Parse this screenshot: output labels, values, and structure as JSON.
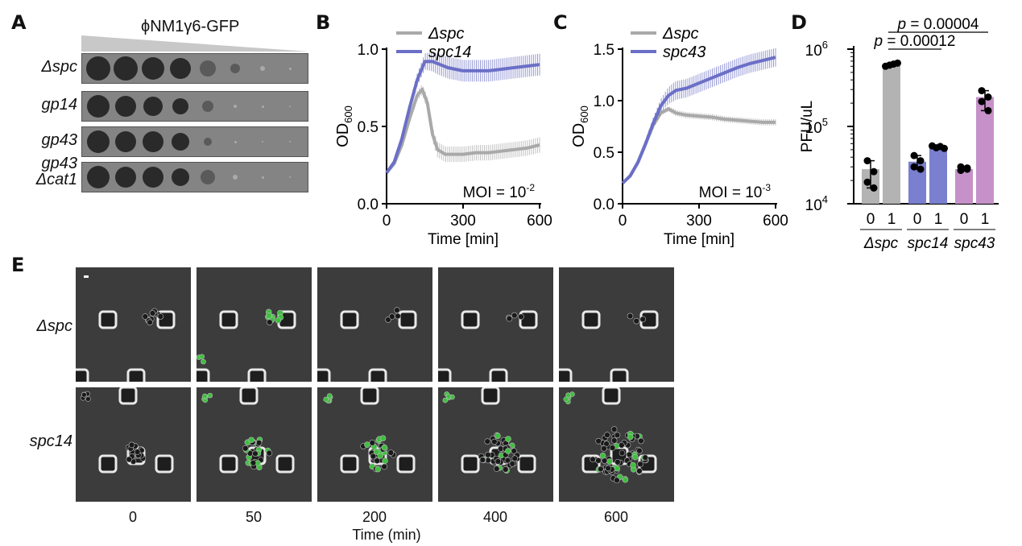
{
  "panels": {
    "a": "A",
    "b": "B",
    "c": "C",
    "d": "D",
    "e": "E"
  },
  "panel_a": {
    "title": "ϕNM1γ6-GFP",
    "rows": [
      {
        "label": "Δspc",
        "label2": ""
      },
      {
        "label": "gp14",
        "label2": ""
      },
      {
        "label": "gp43",
        "label2": ""
      },
      {
        "label": "gp43",
        "label2": "Δcat1"
      }
    ],
    "colors": {
      "strip": "#848484",
      "spot": "#2a2a2a",
      "triangle": "#c8c8c8"
    }
  },
  "chart_data": [
    {
      "panel": "B",
      "type": "line",
      "xlabel": "Time [min]",
      "ylabel": "OD",
      "ylabel_sub": "600",
      "annotation": "MOI = 10",
      "annotation_sup": "-2",
      "xlim": [
        0,
        600
      ],
      "ylim": [
        0,
        1.0
      ],
      "xticks": [
        0,
        300,
        600
      ],
      "yticks": [
        0.0,
        0.5,
        1.0
      ],
      "ytick_labels": [
        "0.0",
        "0.5",
        "1.0"
      ],
      "series": [
        {
          "name": "Δspc",
          "color": "#a9a9a9",
          "x": [
            0,
            30,
            60,
            90,
            120,
            140,
            160,
            180,
            200,
            230,
            260,
            300,
            350,
            400,
            450,
            500,
            550,
            600
          ],
          "y": [
            0.2,
            0.26,
            0.38,
            0.55,
            0.7,
            0.74,
            0.65,
            0.45,
            0.35,
            0.32,
            0.32,
            0.32,
            0.33,
            0.33,
            0.34,
            0.35,
            0.36,
            0.38
          ],
          "err": 0.05
        },
        {
          "name": "spc14",
          "color": "#6b6fc6",
          "x": [
            0,
            30,
            60,
            90,
            120,
            150,
            180,
            210,
            240,
            270,
            300,
            350,
            400,
            450,
            500,
            550,
            600
          ],
          "y": [
            0.2,
            0.27,
            0.42,
            0.62,
            0.8,
            0.92,
            0.92,
            0.9,
            0.88,
            0.87,
            0.86,
            0.86,
            0.86,
            0.87,
            0.88,
            0.89,
            0.9
          ],
          "err": 0.07
        }
      ]
    },
    {
      "panel": "C",
      "type": "line",
      "xlabel": "Time [min]",
      "ylabel": "OD",
      "ylabel_sub": "600",
      "annotation": "MOI = 10",
      "annotation_sup": "-3",
      "xlim": [
        0,
        600
      ],
      "ylim": [
        0,
        1.5
      ],
      "xticks": [
        0,
        300,
        600
      ],
      "yticks": [
        0.0,
        0.5,
        1.0,
        1.5
      ],
      "ytick_labels": [
        "0.0",
        "0.5",
        "1.0",
        "1.5"
      ],
      "series": [
        {
          "name": "Δspc",
          "color": "#a9a9a9",
          "x": [
            0,
            30,
            60,
            90,
            120,
            150,
            180,
            210,
            250,
            300,
            350,
            400,
            450,
            500,
            550,
            600
          ],
          "y": [
            0.2,
            0.27,
            0.4,
            0.58,
            0.76,
            0.88,
            0.92,
            0.88,
            0.86,
            0.85,
            0.84,
            0.82,
            0.81,
            0.8,
            0.79,
            0.79
          ],
          "err": 0.03
        },
        {
          "name": "spc43",
          "color": "#6b6fc6",
          "x": [
            0,
            30,
            60,
            90,
            120,
            150,
            180,
            210,
            250,
            300,
            350,
            400,
            450,
            500,
            550,
            600
          ],
          "y": [
            0.2,
            0.27,
            0.4,
            0.58,
            0.78,
            0.95,
            1.05,
            1.1,
            1.12,
            1.17,
            1.22,
            1.27,
            1.32,
            1.36,
            1.39,
            1.42
          ],
          "err": 0.09
        }
      ]
    },
    {
      "panel": "D",
      "type": "bar",
      "ylabel": "PFU/uL",
      "yscale": "log",
      "ylim": [
        10000,
        1000000
      ],
      "ytick_labels": [
        {
          "base": "10",
          "exp": "6",
          "value": 1000000
        },
        {
          "base": "10",
          "exp": "5",
          "value": 100000
        },
        {
          "base": "10",
          "exp": "4",
          "value": 10000
        }
      ],
      "categories": [
        "0",
        "1",
        "0",
        "1",
        "0",
        "1"
      ],
      "groups": [
        "Δspc",
        "spc14",
        "spc43"
      ],
      "values": [
        28000,
        620000,
        35000,
        53000,
        28000,
        240000
      ],
      "points": [
        [
          36000,
          26000,
          19000,
          16000
        ],
        [
          600000,
          620000,
          640000,
          660000
        ],
        [
          42000,
          36000,
          30000,
          28000
        ],
        [
          56000,
          53000,
          55000,
          52000
        ],
        [
          30000,
          28000,
          27000,
          29000
        ],
        [
          290000,
          240000,
          210000,
          160000
        ]
      ],
      "colors": [
        "#b3b3b3",
        "#b3b3b3",
        "#7a7fcf",
        "#7a7fcf",
        "#c591c8",
        "#c591c8"
      ],
      "comparisons": [
        {
          "text_p": "p",
          "text_rest": " = 0.00012",
          "from": 1,
          "to": 3
        },
        {
          "text_p": "p",
          "text_rest": " = 0.00004",
          "from": 1,
          "to": 5
        }
      ]
    }
  ],
  "panel_e": {
    "rows": [
      "Δspc",
      "spc14"
    ],
    "times": [
      "0",
      "50",
      "200",
      "400",
      "600"
    ],
    "xlabel": "Time (min)",
    "colors": {
      "bg": "#3c3c3c",
      "green": "#3fbf3f",
      "cell": "#1a1a1a"
    }
  }
}
